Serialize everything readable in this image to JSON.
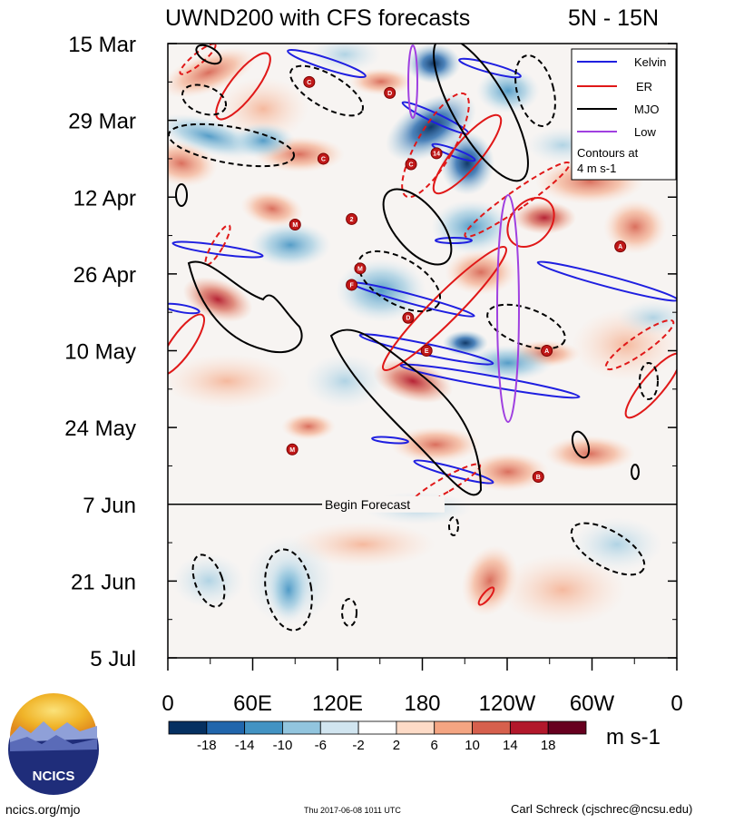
{
  "chart_data": {
    "type": "heatmap",
    "title": "UWND200 with CFS forecasts",
    "region": "5N - 15N",
    "x_ticks": [
      "0",
      "60E",
      "120E",
      "180",
      "120W",
      "60W",
      "0"
    ],
    "y_ticks": [
      "15 Mar",
      "29 Mar",
      "12 Apr",
      "26 Apr",
      "10 May",
      "24 May",
      "7 Jun",
      "21 Jun",
      "5 Jul"
    ],
    "x_range_deg_east": [
      0,
      360
    ],
    "forecast_start": "7 Jun",
    "forecast_label": "Begin Forecast",
    "colorbar": {
      "levels": [
        "-18",
        "-14",
        "-10",
        "-6",
        "-2",
        "2",
        "6",
        "10",
        "14",
        "18"
      ],
      "colors": [
        "#053061",
        "#2166ac",
        "#4393c3",
        "#92c5de",
        "#d1e5f0",
        "#ffffff",
        "#fddbc7",
        "#f4a582",
        "#d6604d",
        "#b2182b",
        "#67001f"
      ],
      "units": "m s-1"
    },
    "legend": {
      "entries": [
        {
          "label": "Kelvin",
          "color": "#1f1fe0"
        },
        {
          "label": "ER",
          "color": "#e01818"
        },
        {
          "label": "MJO",
          "color": "#000000"
        },
        {
          "label": "Low",
          "color": "#a040e0"
        }
      ],
      "note_line1": "Contours at",
      "note_line2": "4 m s-1",
      "placement": "top-right"
    },
    "tc_markers": [
      {
        "letter": "C",
        "lon": 100,
        "date": "22 Mar"
      },
      {
        "letter": "D",
        "lon": 157,
        "date": "24 Mar"
      },
      {
        "letter": "C",
        "lon": 110,
        "date": "5 Apr"
      },
      {
        "letter": "C",
        "lon": 172,
        "date": "6 Apr"
      },
      {
        "letter": "14",
        "lon": 190,
        "date": "4 Apr"
      },
      {
        "letter": "M",
        "lon": 90,
        "date": "17 Apr"
      },
      {
        "letter": "2",
        "lon": 130,
        "date": "16 Apr"
      },
      {
        "letter": "M",
        "lon": 136,
        "date": "25 Apr"
      },
      {
        "letter": "F",
        "lon": 130,
        "date": "28 Apr"
      },
      {
        "letter": "D",
        "lon": 170,
        "date": "4 May"
      },
      {
        "letter": "E",
        "lon": 183,
        "date": "10 May"
      },
      {
        "letter": "A",
        "lon": 268,
        "date": "10 May"
      },
      {
        "letter": "A",
        "lon": 320,
        "date": "21 Apr"
      },
      {
        "letter": "M",
        "lon": 88,
        "date": "28 May"
      },
      {
        "letter": "B",
        "lon": 262,
        "date": "2 Jun"
      }
    ]
  },
  "footer": {
    "site": "ncics.org/mjo",
    "timestamp": "Thu 2017-06-08 1011 UTC",
    "author": "Carl Schreck (cjschrec@ncsu.edu)"
  },
  "logo": {
    "text": "NCICS"
  }
}
